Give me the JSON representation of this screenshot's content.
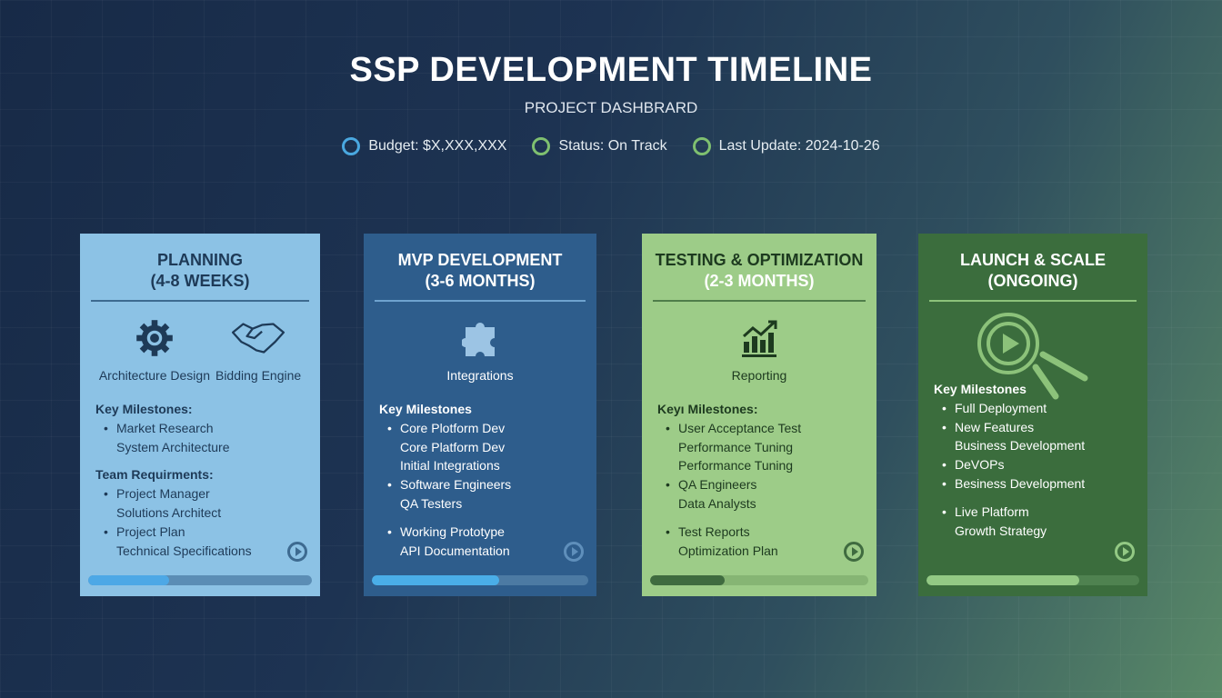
{
  "header": {
    "title": "SSP DEVELOPMENT TIMELINE",
    "subtitle": "PROJECT DASHBRARD",
    "status": [
      {
        "text": "Budget: $X,XXX,XXX",
        "color": "#4aa8e0"
      },
      {
        "text": "Status: On Track",
        "color": "#7fc070"
      },
      {
        "text": "Last Update: 2024-10-26",
        "color": "#7fc070"
      }
    ]
  },
  "cards": [
    {
      "title1": "PLANNING",
      "title2": "(4-8 WEEKS)",
      "icons": [
        {
          "name": "gear-icon",
          "label": "Architecture Design"
        },
        {
          "name": "handshake-icon",
          "label": "Bidding Engine"
        }
      ],
      "lines": [
        {
          "t": "h",
          "text": "Key Milestones:"
        },
        {
          "t": "b",
          "text": "Market Research"
        },
        {
          "t": "c",
          "text": "System Architecture"
        },
        {
          "t": "g",
          "text": ""
        },
        {
          "t": "h",
          "text": "Team Requirments:"
        },
        {
          "t": "b",
          "text": "Project Manager"
        },
        {
          "t": "c",
          "text": "Solutions Architect"
        },
        {
          "t": "b",
          "text": "Project Plan"
        },
        {
          "t": "c",
          "text": "Technical Specifications"
        }
      ],
      "progress": 36,
      "colors": {
        "bg": "#8cc2e5",
        "text": "#1e3a57",
        "rule": "#3d6a90",
        "bar": "#5b8db5",
        "fill": "#4da8e6"
      }
    },
    {
      "title1": "MVP DEVELOPMENT",
      "title2": "(3-6 MONTHS)",
      "icons": [
        {
          "name": "puzzle-icon",
          "label": "Integrations"
        }
      ],
      "lines": [
        {
          "t": "h",
          "text": "Key Milestones"
        },
        {
          "t": "b",
          "text": "Core Plotform Dev"
        },
        {
          "t": "c",
          "text": "Core Platform Dev"
        },
        {
          "t": "c",
          "text": "Initial Integrations"
        },
        {
          "t": "b",
          "text": "Software Engineers"
        },
        {
          "t": "c",
          "text": "QA Testers"
        },
        {
          "t": "g",
          "text": ""
        },
        {
          "t": "b",
          "text": "Working Prototype"
        },
        {
          "t": "c",
          "text": "API Documentation"
        }
      ],
      "progress": 59,
      "colors": {
        "bg": "#2e5d8c",
        "text": "#ffffff",
        "rule": "#6fa3cf",
        "bar": "#4c7aa3",
        "fill": "#4aaee8"
      }
    },
    {
      "title1": "TESTING & OPTIMIZATION",
      "title2": "(2-3 MONTHS)",
      "icons": [
        {
          "name": "chart-growth-icon",
          "label": "Reporting"
        }
      ],
      "lines": [
        {
          "t": "h",
          "text": "Keyı Milestones:"
        },
        {
          "t": "b",
          "text": "User Acceptance Test"
        },
        {
          "t": "c",
          "text": "Performance Tuning"
        },
        {
          "t": "c",
          "text": "Performance Tuning"
        },
        {
          "t": "b",
          "text": "QA Engineers"
        },
        {
          "t": "c",
          "text": "Data Analysts"
        },
        {
          "t": "g",
          "text": ""
        },
        {
          "t": "b",
          "text": "Test Reports"
        },
        {
          "t": "c",
          "text": "Optimization Plan"
        }
      ],
      "progress": 34,
      "colors": {
        "bg": "#9dcc88",
        "text": "#1d3a1f",
        "rule": "#4f7d4a",
        "bar": "#86b574",
        "fill": "#3f6b3f"
      }
    },
    {
      "title1": "LAUNCH & SCALE",
      "title2": "(ONGOING)",
      "icons": [
        {
          "name": "magnifier-play-icon",
          "label": ""
        }
      ],
      "lines": [
        {
          "t": "h",
          "text": "Key Milestones"
        },
        {
          "t": "b",
          "text": "Full Deployment"
        },
        {
          "t": "b",
          "text": "New Features"
        },
        {
          "t": "c",
          "text": "Business Development"
        },
        {
          "t": "b",
          "text": "DeVOPs"
        },
        {
          "t": "b",
          "text": "Besiness Development"
        },
        {
          "t": "g",
          "text": ""
        },
        {
          "t": "b",
          "text": "Live Platform"
        },
        {
          "t": "c",
          "text": "Growth Strategy"
        }
      ],
      "progress": 72,
      "colors": {
        "bg": "#3b6d3d",
        "text": "#ffffff",
        "rule": "#8cc27a",
        "bar": "#4f8250",
        "fill": "#93c984"
      }
    }
  ]
}
